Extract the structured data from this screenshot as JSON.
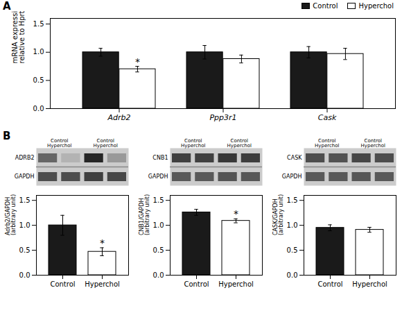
{
  "chart_data": [
    {
      "type": "bar",
      "panel_label": "A",
      "ylabel": "mRNA expression\nrelative to Hprt mRNA",
      "categories": [
        "Adrb2",
        "Ppp3r1",
        "Cask"
      ],
      "series": [
        {
          "name": "Control",
          "color": "#1a1a1a",
          "values": [
            1.0,
            1.0,
            1.0
          ],
          "errors": [
            0.07,
            0.12,
            0.1
          ]
        },
        {
          "name": "Hyperchol",
          "color": "#ffffff",
          "values": [
            0.7,
            0.88,
            0.97
          ],
          "errors": [
            0.05,
            0.07,
            0.1
          ]
        }
      ],
      "annotations": [
        {
          "text": "*",
          "category": "Adrb2",
          "series": "Hyperchol"
        }
      ],
      "ylim": [
        0,
        1.6
      ],
      "yticks": [
        {
          "value": 0,
          "label": "0.0"
        },
        0.5,
        {
          "value": 1.0,
          "label": "1.0"
        },
        1.5
      ],
      "legend": "upper right"
    },
    {
      "type": "bar",
      "panel_label": "B",
      "ylabel": "Adrb2/GAPDH\n(arbitrary unit)",
      "categories": [
        "Control",
        "Hyperchol"
      ],
      "values": [
        1.0,
        0.47
      ],
      "errors": [
        0.2,
        0.08
      ],
      "colors": [
        "#1a1a1a",
        "#ffffff"
      ],
      "annotations": [
        {
          "text": "*",
          "category": "Hyperchol"
        }
      ],
      "ylim": [
        0,
        1.6
      ],
      "yticks": [
        {
          "value": 0,
          "label": "0.0"
        },
        0.5,
        {
          "value": 1.0,
          "label": "1.0"
        },
        1.5
      ],
      "blot": {
        "row_labels": [
          "ADRB2",
          "GAPDH"
        ],
        "lane_labels": [
          "Control\nHyperchol",
          "Control\nHyperchol"
        ],
        "cells": [
          [
            0.6,
            0.3,
            0.85,
            0.4
          ],
          [
            0.7,
            0.7,
            0.75,
            0.72
          ]
        ],
        "clim": [
          0,
          1
        ]
      }
    },
    {
      "type": "bar",
      "ylabel": "CNB1/GAPDH\n(arbitrary unit)",
      "categories": [
        "Control",
        "Hyperchol"
      ],
      "values": [
        1.26,
        1.09
      ],
      "errors": [
        0.06,
        0.04
      ],
      "colors": [
        "#1a1a1a",
        "#ffffff"
      ],
      "annotations": [
        {
          "text": "*",
          "category": "Hyperchol"
        }
      ],
      "ylim": [
        0,
        1.6
      ],
      "yticks": [
        {
          "value": 0,
          "label": "0.0"
        },
        0.5,
        {
          "value": 1.0,
          "label": "1.0"
        },
        1.5
      ],
      "blot": {
        "row_labels": [
          "CNB1",
          "GAPDH"
        ],
        "lane_labels": [
          "Control\nHyperchol",
          "Control\nHyperchol"
        ],
        "cells": [
          [
            0.75,
            0.75,
            0.78,
            0.76
          ],
          [
            0.65,
            0.65,
            0.67,
            0.66
          ]
        ],
        "clim": [
          0,
          1
        ]
      }
    },
    {
      "type": "bar",
      "ylabel": "CASK/GAPDH\n(arbitrary unit)",
      "categories": [
        "Control",
        "Hyperchol"
      ],
      "values": [
        0.95,
        0.91
      ],
      "errors": [
        0.06,
        0.05
      ],
      "colors": [
        "#1a1a1a",
        "#ffffff"
      ],
      "annotations": [],
      "ylim": [
        0,
        1.6
      ],
      "yticks": [
        {
          "value": 0,
          "label": "0.0"
        },
        0.5,
        {
          "value": 1.0,
          "label": "1.0"
        },
        1.5
      ],
      "blot": {
        "row_labels": [
          "CASK",
          "GAPDH"
        ],
        "lane_labels": [
          "Control\nHyperchol",
          "Control\nHyperchol"
        ],
        "cells": [
          [
            0.7,
            0.68,
            0.72,
            0.7
          ],
          [
            0.65,
            0.65,
            0.66,
            0.65
          ]
        ],
        "clim": [
          0,
          1
        ]
      }
    }
  ]
}
